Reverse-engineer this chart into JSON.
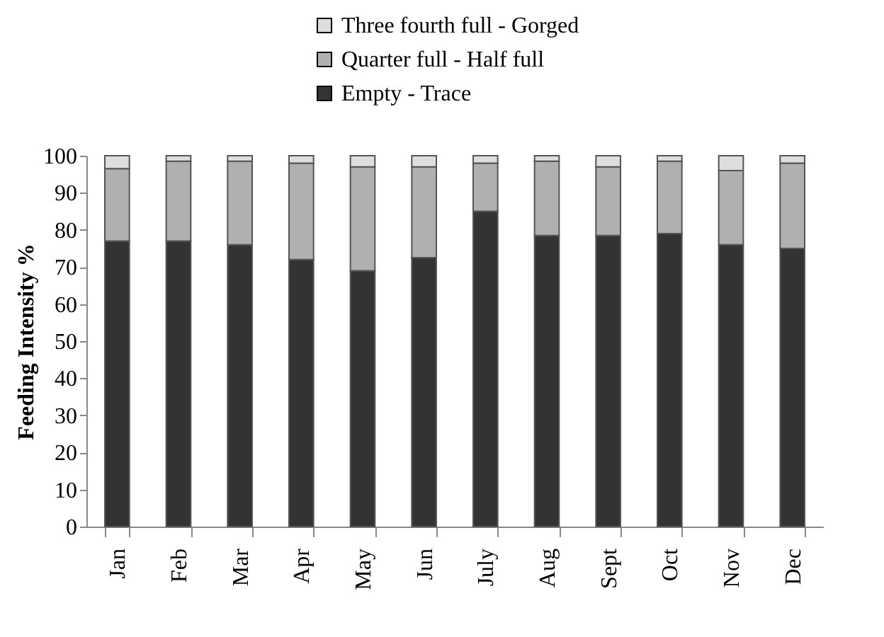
{
  "chart_data": {
    "type": "bar",
    "stacked": true,
    "ylabel": "Feeding Intensity %",
    "categories": [
      "Jan",
      "Feb",
      "Mar",
      "Apr",
      "May",
      "Jun",
      "July",
      "Aug",
      "Sept",
      "Oct",
      "Nov",
      "Dec"
    ],
    "series": [
      {
        "name": "Empty - Trace",
        "color": "#333333",
        "values": [
          77,
          77,
          76,
          72,
          69,
          72.5,
          85,
          78.5,
          78.5,
          79,
          76,
          75
        ]
      },
      {
        "name": "Quarter full - Half full",
        "color": "#b0b0b0",
        "values": [
          19.5,
          21.5,
          22.5,
          26,
          28,
          24.5,
          13,
          20,
          18.5,
          19.5,
          20,
          23
        ]
      },
      {
        "name": "Three fourth full - Gorged",
        "color": "#dedede",
        "values": [
          3.5,
          1.5,
          1.5,
          2,
          3,
          3,
          2,
          1.5,
          3,
          1.5,
          4,
          2
        ]
      }
    ],
    "ylim": [
      0,
      100
    ],
    "yticks": [
      0,
      10,
      20,
      30,
      40,
      50,
      60,
      70,
      80,
      90,
      100
    ],
    "grid": false,
    "legend": "top"
  }
}
